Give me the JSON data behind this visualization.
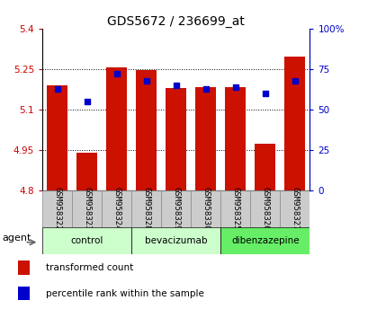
{
  "title": "GDS5672 / 236699_at",
  "samples": [
    "GSM958322",
    "GSM958323",
    "GSM958324",
    "GSM958328",
    "GSM958329",
    "GSM958330",
    "GSM958325",
    "GSM958326",
    "GSM958327"
  ],
  "transformed_count": [
    5.19,
    4.94,
    5.255,
    5.245,
    5.18,
    5.185,
    5.185,
    4.975,
    5.295
  ],
  "percentile_rank": [
    63,
    55,
    72,
    68,
    65,
    63,
    64,
    60,
    68
  ],
  "ymin": 4.8,
  "ymax": 5.4,
  "yticks": [
    4.8,
    4.95,
    5.1,
    5.25,
    5.4
  ],
  "ytick_labels": [
    "4.8",
    "4.95",
    "5.1",
    "5.25",
    "5.4"
  ],
  "right_yticks": [
    0,
    25,
    50,
    75,
    100
  ],
  "right_ytick_labels": [
    "0",
    "25",
    "50",
    "75",
    "100%"
  ],
  "groups": [
    {
      "name": "control",
      "indices": [
        0,
        1,
        2
      ],
      "color": "#ccffcc"
    },
    {
      "name": "bevacizumab",
      "indices": [
        3,
        4,
        5
      ],
      "color": "#ccffcc"
    },
    {
      "name": "dibenzazepine",
      "indices": [
        6,
        7,
        8
      ],
      "color": "#66ee66"
    }
  ],
  "bar_color": "#cc1100",
  "dot_color": "#0000cc",
  "bar_width": 0.7,
  "left_axis_color": "#cc0000",
  "right_axis_color": "#0000cc",
  "background_color": "#ffffff",
  "tick_label_area_color": "#cccccc",
  "agent_label": "agent",
  "legend_tc": "transformed count",
  "legend_pr": "percentile rank within the sample"
}
